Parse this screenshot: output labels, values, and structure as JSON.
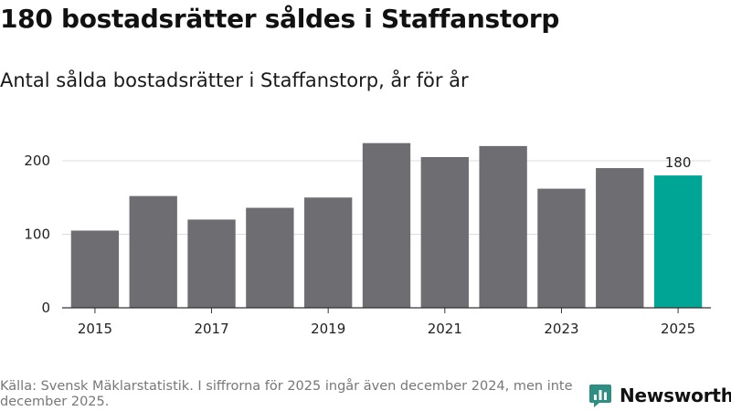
{
  "header": {
    "title": "180 bostadsrätter såldes i Staffanstorp",
    "subtitle": "Antal sålda bostadsrätter i Staffanstorp, år för år"
  },
  "footer": {
    "source": "Källa: Svensk Mäklarstatistik. I siffrorna för 2025 ingår även december 2024, men inte december 2025.",
    "brand": "Newsworthy"
  },
  "colors": {
    "bar": "#6e6d72",
    "highlight": "#00a596",
    "grid": "#dddddd",
    "axis": "#333333",
    "brand": "#2d8f84"
  },
  "chart_data": {
    "type": "bar",
    "categories": [
      "2015",
      "2016",
      "2017",
      "2018",
      "2019",
      "2020",
      "2021",
      "2022",
      "2023",
      "2024",
      "2025"
    ],
    "values": [
      105,
      152,
      120,
      136,
      150,
      224,
      205,
      220,
      162,
      190,
      180
    ],
    "x_tick_labels": [
      "2015",
      "2017",
      "2019",
      "2021",
      "2023",
      "2025"
    ],
    "y_ticks": [
      0,
      100,
      200
    ],
    "ylim": [
      0,
      240
    ],
    "highlight_category": "2025",
    "data_labels": [
      {
        "category": "2025",
        "text": "180"
      }
    ],
    "grid": true,
    "xlabel": "",
    "ylabel": ""
  }
}
